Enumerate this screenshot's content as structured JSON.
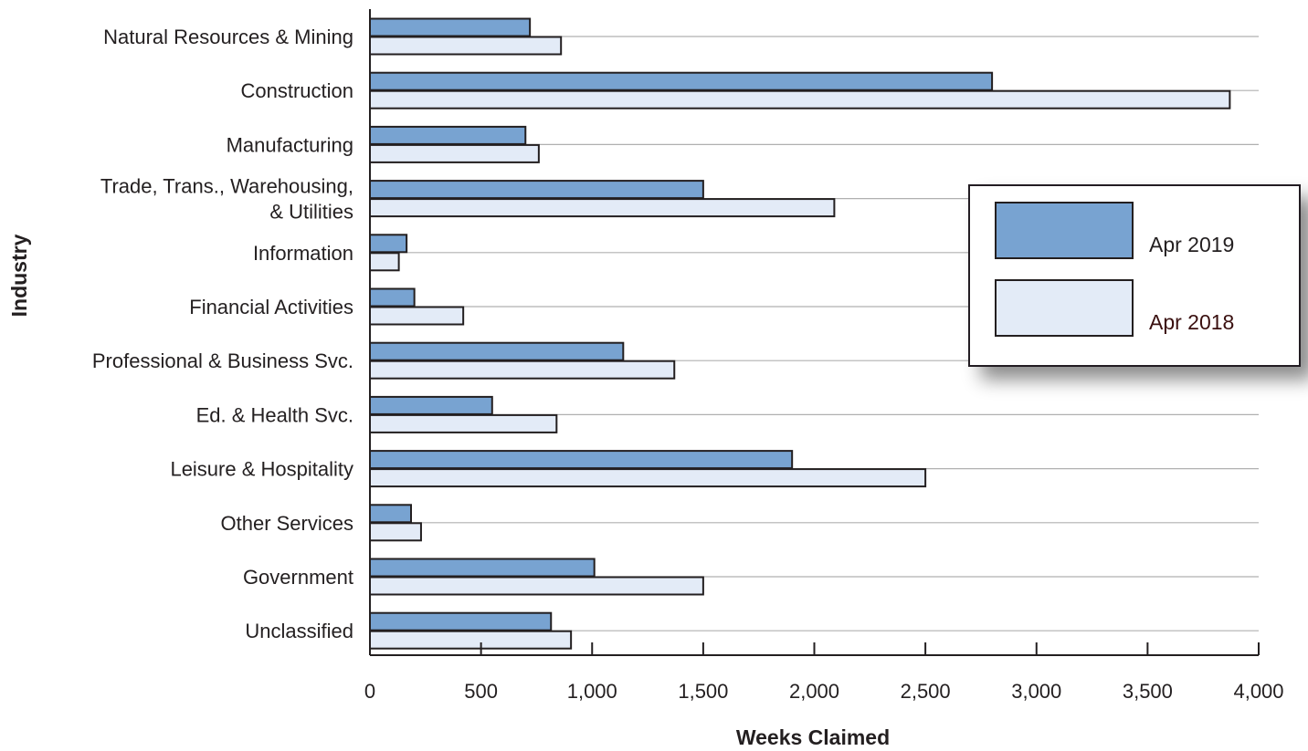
{
  "chart_data": {
    "type": "bar",
    "orientation": "horizontal",
    "categories": [
      "Natural Resources & Mining",
      "Construction",
      "Manufacturing",
      "Trade, Trans., Warehousing,\n& Utilities",
      "Information",
      "Financial Activities",
      "Professional & Business Svc.",
      "Ed. & Health Svc.",
      "Leisure & Hospitality",
      "Other Services",
      "Government",
      "Unclassified"
    ],
    "series": [
      {
        "name": "Apr 2019",
        "color": "#78a3d1",
        "values": [
          720,
          2800,
          700,
          1500,
          165,
          200,
          1140,
          550,
          1900,
          185,
          1010,
          815
        ]
      },
      {
        "name": "Apr 2018",
        "color": "#e3ebf7",
        "values": [
          860,
          3870,
          760,
          2090,
          130,
          420,
          1370,
          840,
          2500,
          230,
          1500,
          905
        ]
      }
    ],
    "xlim": [
      0,
      4000
    ],
    "xticks": [
      0,
      500,
      1000,
      1500,
      2000,
      2500,
      3000,
      3500,
      4000
    ],
    "xtick_labels": [
      "0",
      "500",
      "1,000",
      "1,500",
      "2,000",
      "2,500",
      "3,000",
      "3,500",
      "4,000"
    ],
    "xlabel": "Weeks Claimed",
    "ylabel": "Industry",
    "grid": "horizontal",
    "legend_position": "right",
    "edge_color": "#231f20"
  }
}
